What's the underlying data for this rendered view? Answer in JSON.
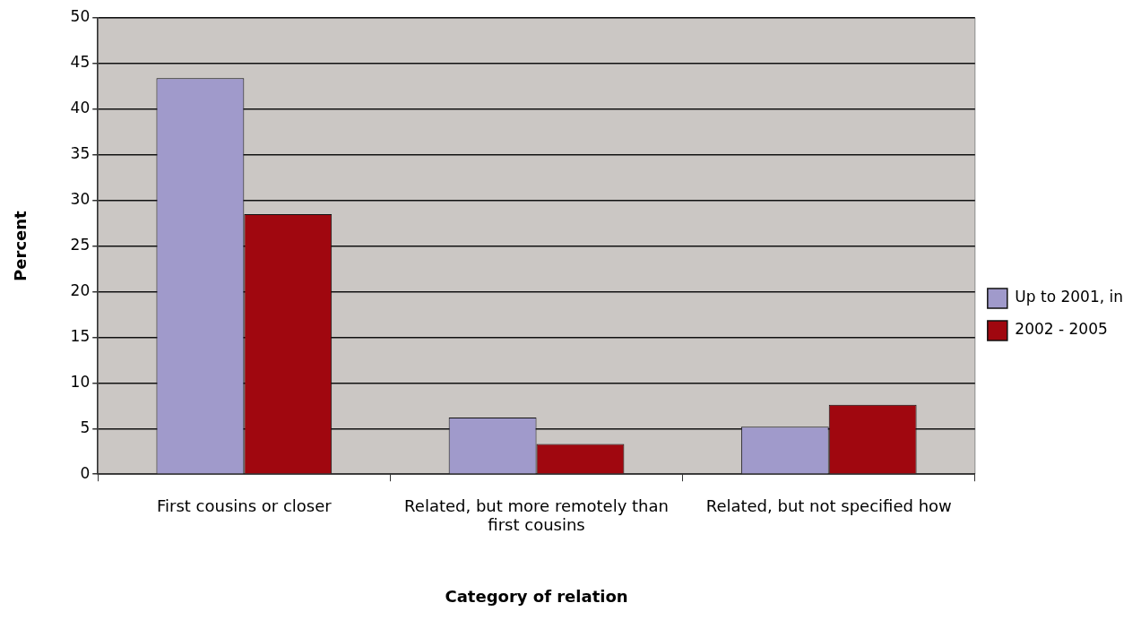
{
  "chart_data": {
    "type": "bar",
    "xlabel": "Category of relation",
    "ylabel": "Percent",
    "categories": [
      "First cousins or closer",
      "Related, but more remotely than first cousins",
      "Related, but not specified how"
    ],
    "series": [
      {
        "name": "Up to 2001, in",
        "color": "#a09acb",
        "values": [
          43.4,
          6.2,
          5.2
        ]
      },
      {
        "name": "2002 - 2005",
        "color": "#a0070f",
        "values": [
          28.5,
          3.3,
          7.6
        ]
      }
    ],
    "ylim": [
      0,
      50
    ],
    "yticks": [
      0,
      5,
      10,
      15,
      20,
      25,
      30,
      35,
      40,
      45,
      50
    ],
    "grid": "y",
    "legend": "right"
  }
}
